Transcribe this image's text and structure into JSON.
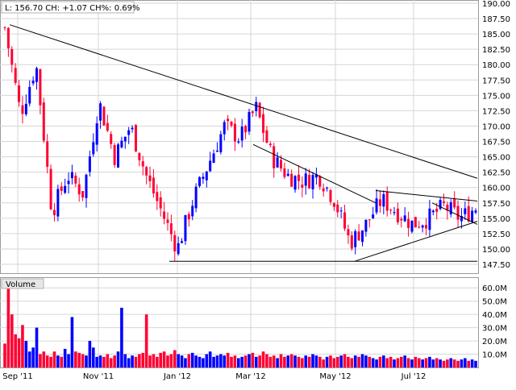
{
  "header": {
    "quote": "L: 156.70 CH: +1.07 CH%: 0.69%"
  },
  "volume_label": "Volume",
  "colors": {
    "up": "#0000ff",
    "down": "#ff0033",
    "grid": "#d6d6d6",
    "trend": "#000000"
  },
  "chart_data": [
    {
      "type": "candlestick",
      "title": "",
      "ylim": [
        147.5,
        190
      ],
      "grid": true,
      "y_ticks": [
        "147.50",
        "150.00",
        "152.50",
        "155.00",
        "157.50",
        "160.00",
        "162.50",
        "165.00",
        "167.50",
        "170.00",
        "172.50",
        "175.00",
        "177.50",
        "180.00",
        "182.50",
        "185.00",
        "187.50",
        "190.00"
      ],
      "x_ticks": [
        "Sep '11",
        "Nov '11",
        "Jan '12",
        "Mar '12",
        "May '12",
        "Jul '12"
      ],
      "last": 156.7,
      "change": 1.07,
      "change_pct": 0.69,
      "x": [
        "Sep '11",
        "Sep '11",
        "Sep '11",
        "Oct '11",
        "Oct '11",
        "Oct '11",
        "Nov '11",
        "Nov '11",
        "Nov '11",
        "Dec '11",
        "Dec '11",
        "Dec '11",
        "Jan '12",
        "Jan '12",
        "Feb '12",
        "Feb '12",
        "Mar '12",
        "Mar '12",
        "Mar '12",
        "Apr '12",
        "Apr '12",
        "May '12",
        "May '12",
        "May '12",
        "Jun '12",
        "Jun '12",
        "Jun '12",
        "Jul '12",
        "Jul '12",
        "Aug '12",
        "Aug '12"
      ],
      "close": [
        186,
        172,
        180,
        156,
        162,
        159,
        174,
        165,
        170,
        162,
        156,
        150,
        158,
        164,
        170,
        168,
        173,
        165,
        162,
        161,
        162,
        158,
        151,
        154,
        158,
        156,
        154,
        155,
        157,
        155,
        156.7
      ],
      "trendlines": [
        {
          "from": [
            "Sep '11",
            186.5
          ],
          "to": [
            "Aug '12",
            161.5
          ]
        },
        {
          "from": [
            "Mar '12",
            167
          ],
          "to": [
            "Jun '12",
            157.5
          ]
        },
        {
          "from": [
            "Dec '11",
            148
          ],
          "to": [
            "Aug '12",
            148
          ]
        },
        {
          "from": [
            "May '12",
            148
          ],
          "to": [
            "Aug '12",
            154.5
          ]
        },
        {
          "from": [
            "Jun '12",
            159.5
          ],
          "to": [
            "Aug '12",
            157.8
          ]
        },
        {
          "from": [
            "Jul '12",
            157.5
          ],
          "to": [
            "Aug '12",
            154
          ]
        }
      ]
    },
    {
      "type": "bar",
      "title": "Volume",
      "ylim": [
        0,
        65000000
      ],
      "y_ticks": [
        "10.0M",
        "20.0M",
        "30.0M",
        "40.0M",
        "50.0M",
        "60.0M"
      ],
      "values": [
        18,
        62,
        40,
        25,
        22,
        32,
        20,
        12,
        15,
        30,
        10,
        12,
        9,
        8,
        12,
        9,
        8,
        14,
        10,
        38,
        12,
        11,
        10,
        9,
        20,
        15,
        8,
        9,
        8,
        10,
        7,
        9,
        12,
        45,
        10,
        7,
        9,
        8,
        10,
        11,
        40,
        9,
        10,
        8,
        11,
        12,
        9,
        10,
        13,
        10,
        9,
        7,
        10,
        11,
        9,
        8,
        7,
        10,
        12,
        8,
        9,
        10,
        9,
        11,
        8,
        9,
        7,
        8,
        9,
        10,
        11,
        8,
        9,
        12,
        10,
        8,
        9,
        7,
        10,
        8,
        9,
        10,
        9,
        8,
        7,
        9,
        8,
        10,
        9,
        8,
        6,
        8,
        9,
        7,
        8,
        9,
        10,
        8,
        7,
        9,
        8,
        10,
        9,
        8,
        7,
        6,
        8,
        9,
        7,
        8,
        6,
        7,
        8,
        9,
        7,
        6,
        8,
        7,
        6,
        7,
        8,
        6,
        7,
        6,
        5,
        6,
        7,
        6,
        5,
        6,
        7,
        5,
        6,
        5
      ]
    }
  ]
}
